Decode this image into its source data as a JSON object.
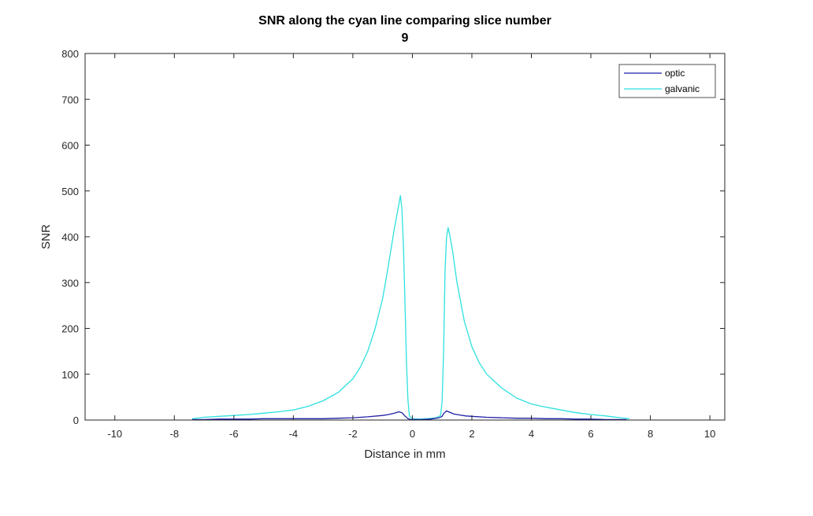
{
  "chart_data": {
    "type": "line",
    "title": [
      "SNR along the cyan line comparing slice number",
      "9"
    ],
    "xlabel": "Distance in mm",
    "ylabel": "SNR",
    "xlim": [
      -11,
      10.5
    ],
    "ylim": [
      0,
      800
    ],
    "xticks": [
      -10,
      -8,
      -6,
      -4,
      -2,
      0,
      2,
      4,
      6,
      8,
      10
    ],
    "yticks": [
      0,
      100,
      200,
      300,
      400,
      500,
      600,
      700,
      800
    ],
    "xtick_labels": [
      "-10",
      "-8",
      "-6",
      "-4",
      "-2",
      "0",
      "2",
      "4",
      "6",
      "8",
      "10"
    ],
    "ytick_labels": [
      "0",
      "100",
      "200",
      "300",
      "400",
      "500",
      "600",
      "700",
      "800"
    ],
    "grid": false,
    "legend_position": "top-right",
    "series": [
      {
        "name": "optic",
        "color": "#1f1fa6",
        "x": [
          -7.4,
          -7.0,
          -6.5,
          -6.0,
          -5.5,
          -5.0,
          -4.5,
          -4.0,
          -3.5,
          -3.0,
          -2.5,
          -2.0,
          -1.5,
          -1.0,
          -0.8,
          -0.6,
          -0.45,
          -0.35,
          -0.25,
          -0.15,
          -0.05,
          0.1,
          0.3,
          0.6,
          0.9,
          1.0,
          1.05,
          1.15,
          1.25,
          1.4,
          1.6,
          1.8,
          2.0,
          2.5,
          3.0,
          3.5,
          4.0,
          4.5,
          5.0,
          5.5,
          6.0,
          6.5,
          7.0,
          7.2
        ],
        "y": [
          1,
          1,
          2,
          2,
          2,
          3,
          3,
          3,
          3,
          3,
          4,
          5,
          7,
          10,
          12,
          15,
          18,
          16,
          9,
          3,
          1,
          1,
          1,
          2,
          5,
          8,
          14,
          20,
          17,
          13,
          11,
          9,
          8,
          6,
          5,
          4,
          4,
          3,
          3,
          2,
          2,
          1,
          1,
          1
        ]
      },
      {
        "name": "galvanic",
        "color": "#2fe0e0",
        "x": [
          -7.4,
          -7.0,
          -6.5,
          -6.0,
          -5.5,
          -5.0,
          -4.5,
          -4.0,
          -3.5,
          -3.0,
          -2.5,
          -2.0,
          -1.75,
          -1.5,
          -1.25,
          -1.0,
          -0.85,
          -0.7,
          -0.6,
          -0.5,
          -0.4,
          -0.35,
          -0.3,
          -0.25,
          -0.2,
          -0.15,
          -0.1,
          0.0,
          0.2,
          0.5,
          0.8,
          0.95,
          1.0,
          1.05,
          1.1,
          1.15,
          1.2,
          1.25,
          1.35,
          1.5,
          1.75,
          2.0,
          2.25,
          2.5,
          3.0,
          3.5,
          4.0,
          4.5,
          5.0,
          5.5,
          6.0,
          6.5,
          7.0,
          7.3
        ],
        "y": [
          3,
          6,
          8,
          10,
          12,
          15,
          18,
          22,
          30,
          42,
          60,
          90,
          115,
          150,
          200,
          265,
          320,
          380,
          420,
          455,
          490,
          460,
          380,
          260,
          130,
          45,
          8,
          3,
          2,
          3,
          5,
          10,
          40,
          150,
          330,
          400,
          420,
          405,
          370,
          300,
          215,
          160,
          125,
          100,
          70,
          48,
          35,
          28,
          22,
          16,
          12,
          9,
          5,
          3
        ]
      }
    ]
  }
}
